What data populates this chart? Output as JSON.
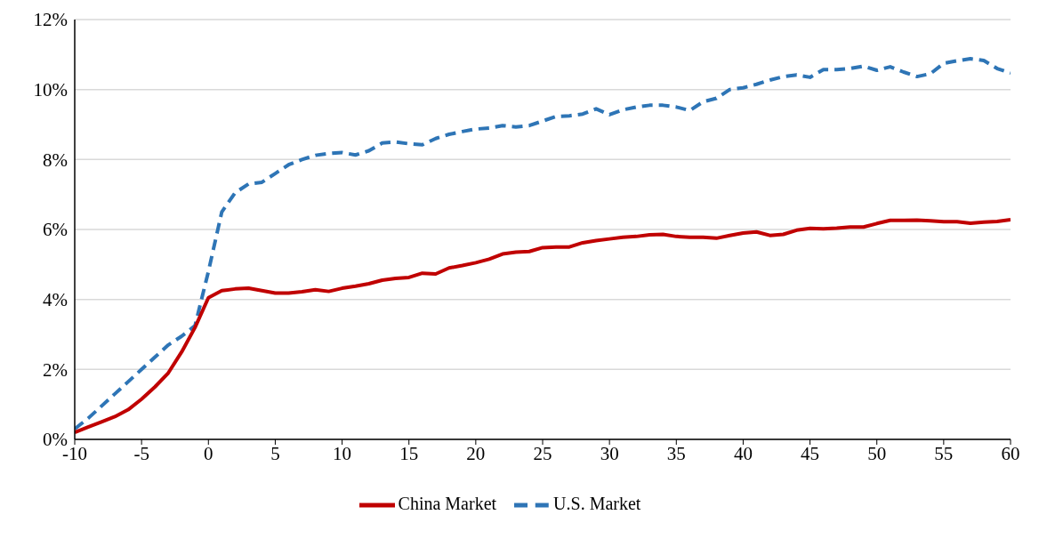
{
  "chart_data": {
    "type": "line",
    "x": [
      -10,
      -9,
      -8,
      -7,
      -6,
      -5,
      -4,
      -3,
      -2,
      -1,
      0,
      1,
      2,
      3,
      4,
      5,
      6,
      7,
      8,
      9,
      10,
      11,
      12,
      13,
      14,
      15,
      16,
      17,
      18,
      19,
      20,
      21,
      22,
      23,
      24,
      25,
      26,
      27,
      28,
      29,
      30,
      31,
      32,
      33,
      34,
      35,
      36,
      37,
      38,
      39,
      40,
      41,
      42,
      43,
      44,
      45,
      46,
      47,
      48,
      49,
      50,
      51,
      52,
      53,
      54,
      55,
      56,
      57,
      58,
      59,
      60
    ],
    "series": [
      {
        "name": "U.S. Market",
        "color": "#2e75b6",
        "line_style": "dashed",
        "values": [
          0.3,
          0.6,
          0.95,
          1.3,
          1.65,
          2.0,
          2.35,
          2.7,
          2.95,
          3.25,
          4.8,
          6.5,
          7.05,
          7.3,
          7.35,
          7.6,
          7.85,
          8.0,
          8.12,
          8.17,
          8.2,
          8.13,
          8.25,
          8.47,
          8.5,
          8.45,
          8.42,
          8.6,
          8.72,
          8.8,
          8.87,
          8.9,
          8.97,
          8.93,
          8.97,
          9.1,
          9.23,
          9.25,
          9.3,
          9.45,
          9.28,
          9.42,
          9.5,
          9.55,
          9.55,
          9.5,
          9.4,
          9.65,
          9.75,
          10.0,
          10.05,
          10.15,
          10.27,
          10.37,
          10.42,
          10.35,
          10.57,
          10.57,
          10.6,
          10.67,
          10.55,
          10.65,
          10.5,
          10.37,
          10.45,
          10.75,
          10.82,
          10.88,
          10.83,
          10.6,
          10.47
        ]
      },
      {
        "name": "China Market",
        "color": "#c00000",
        "line_style": "solid",
        "values": [
          0.2,
          0.35,
          0.5,
          0.65,
          0.85,
          1.15,
          1.5,
          1.9,
          2.5,
          3.2,
          4.05,
          4.25,
          4.3,
          4.32,
          4.25,
          4.18,
          4.18,
          4.22,
          4.28,
          4.23,
          4.32,
          4.38,
          4.45,
          4.55,
          4.6,
          4.63,
          4.75,
          4.73,
          4.9,
          4.97,
          5.05,
          5.15,
          5.3,
          5.35,
          5.37,
          5.48,
          5.5,
          5.5,
          5.62,
          5.68,
          5.73,
          5.78,
          5.8,
          5.85,
          5.86,
          5.8,
          5.78,
          5.78,
          5.75,
          5.83,
          5.9,
          5.93,
          5.83,
          5.86,
          5.98,
          6.03,
          6.02,
          6.04,
          6.07,
          6.07,
          6.17,
          6.26,
          6.26,
          6.27,
          6.25,
          6.22,
          6.22,
          6.18,
          6.21,
          6.23,
          6.28
        ]
      }
    ],
    "xlim": [
      -10,
      60
    ],
    "xticks": [
      -10,
      -5,
      0,
      5,
      10,
      15,
      20,
      25,
      30,
      35,
      40,
      45,
      50,
      55,
      60
    ],
    "ylim": [
      0,
      12
    ],
    "yticks": [
      {
        "value": 0,
        "label": "0%"
      },
      {
        "value": 2,
        "label": "2%"
      },
      {
        "value": 4,
        "label": "4%"
      },
      {
        "value": 6,
        "label": "6%"
      },
      {
        "value": 8,
        "label": "8%"
      },
      {
        "value": 10,
        "label": "10%"
      },
      {
        "value": 12,
        "label": "12%"
      }
    ],
    "grid": "y",
    "legend": "bottom"
  }
}
